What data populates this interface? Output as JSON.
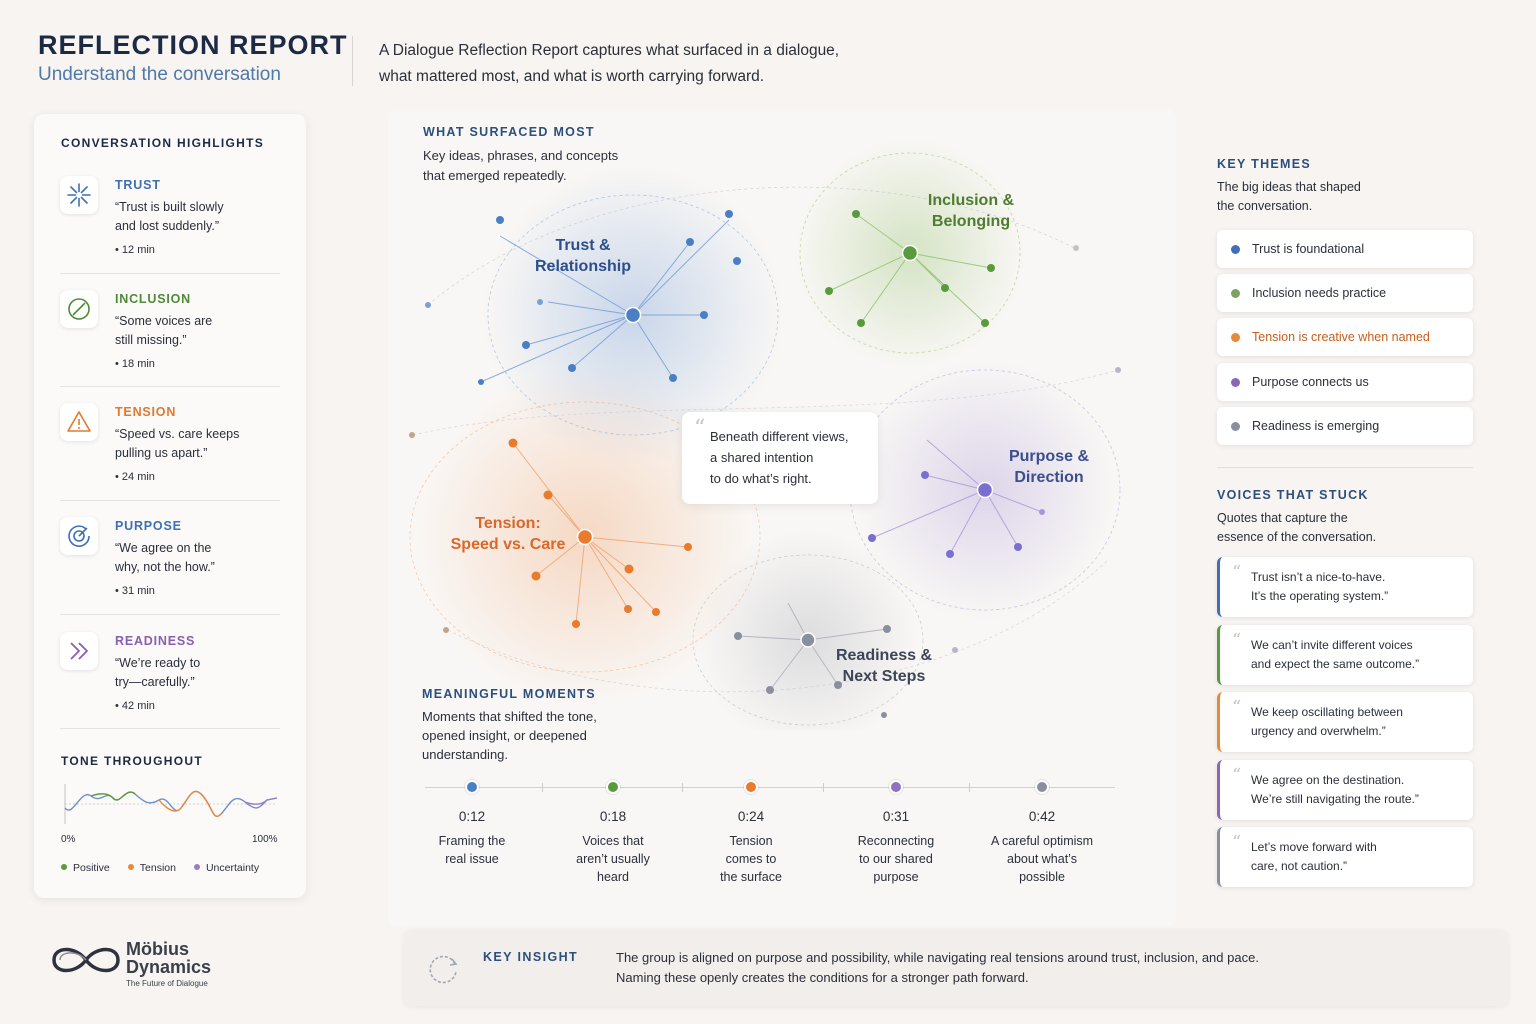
{
  "header": {
    "title": "REFLECTION REPORT",
    "subtitle": "Understand the conversation",
    "intro_line1": "A Dialogue Reflection Report captures what surfaced in a dialogue,",
    "intro_line2": "what mattered most, and what is worth carrying forward."
  },
  "highlights": {
    "title": "CONVERSATION HIGHLIGHTS",
    "items": [
      {
        "name": "TRUST",
        "quote_l1": "“Trust is built slowly",
        "quote_l2": "and lost suddenly.”",
        "time": "• 12 min",
        "color": "#3f6fb5",
        "icon": "sparkle-icon"
      },
      {
        "name": "INCLUSION",
        "quote_l1": "“Some voices are",
        "quote_l2": "still missing.”",
        "time": "• 18 min",
        "color": "#4f8a3a",
        "icon": "slash-circle-icon"
      },
      {
        "name": "TENSION",
        "quote_l1": "“Speed vs. care keeps",
        "quote_l2": "pulling us apart.”",
        "time": "• 24 min",
        "color": "#e07a2f",
        "icon": "warning-icon"
      },
      {
        "name": "PURPOSE",
        "quote_l1": "“We agree on the",
        "quote_l2": "why, not the how.”",
        "time": "• 31 min",
        "color": "#3f6fb5",
        "icon": "target-icon"
      },
      {
        "name": "READINESS",
        "quote_l1": "“We’re ready to",
        "quote_l2": "try—carefully.”",
        "time": "• 42 min",
        "color": "#8a5fb0",
        "icon": "double-chevron-icon"
      }
    ]
  },
  "tone": {
    "title": "TONE THROUGHOUT",
    "axis_start": "0%",
    "axis_end": "100%",
    "legend": [
      {
        "label": "Positive",
        "color": "#5a9a3e"
      },
      {
        "label": "Tension",
        "color": "#e88a3c"
      },
      {
        "label": "Uncertainty",
        "color": "#9a7cc4"
      }
    ]
  },
  "logo": {
    "name_l1": "Möbius",
    "name_l2": "Dynamics",
    "tagline": "The Future of Dialogue"
  },
  "surfaced": {
    "title": "WHAT SURFACED MOST",
    "desc_l1": "Key ideas, phrases, and concepts",
    "desc_l2": "that emerged repeatedly.",
    "clusters": [
      {
        "l1": "Trust &",
        "l2": "Relationship",
        "color": "#2c4f8c"
      },
      {
        "l1": "Inclusion &",
        "l2": "Belonging",
        "color": "#4e7d2f"
      },
      {
        "l1": "Tension:",
        "l2": "Speed vs. Care",
        "color": "#d9682a"
      },
      {
        "l1": "Purpose &",
        "l2": "Direction",
        "color": "#3a4f8c"
      },
      {
        "l1": "Readiness &",
        "l2": "Next Steps",
        "color": "#3e4556"
      }
    ],
    "center_quote_l1": "Beneath different views,",
    "center_quote_l2": "a shared intention",
    "center_quote_l3": "to do what’s right."
  },
  "moments": {
    "title": "MEANINGFUL MOMENTS",
    "desc_l1": "Moments that shifted the tone,",
    "desc_l2": "opened insight, or deepened",
    "desc_l3": "understanding.",
    "items": [
      {
        "time": "0:12",
        "l1": "Framing the",
        "l2": "real issue",
        "l3": "",
        "color": "#4a7fc4"
      },
      {
        "time": "0:18",
        "l1": "Voices that",
        "l2": "aren’t usually",
        "l3": "heard",
        "color": "#5a9a3e"
      },
      {
        "time": "0:24",
        "l1": "Tension",
        "l2": "comes to",
        "l3": "the surface",
        "color": "#ea7a2c"
      },
      {
        "time": "0:31",
        "l1": "Reconnecting",
        "l2": "to our shared",
        "l3": "purpose",
        "color": "#9070c0"
      },
      {
        "time": "0:42",
        "l1": "A careful optimism",
        "l2": "about what’s",
        "l3": "possible",
        "color": "#8a8fa0"
      }
    ]
  },
  "themes": {
    "title": "KEY THEMES",
    "desc_l1": "The big ideas that shaped",
    "desc_l2": "the conversation.",
    "items": [
      {
        "label": "Trust is foundational",
        "color": "#3f6fb5"
      },
      {
        "label": "Inclusion needs practice",
        "color": "#7ea35e"
      },
      {
        "label": "Tension is creative when named",
        "color": "#e8893a"
      },
      {
        "label": "Purpose connects us",
        "color": "#8a66b8"
      },
      {
        "label": "Readiness is emerging",
        "color": "#8a8fa0"
      }
    ]
  },
  "voices": {
    "title": "VOICES THAT STUCK",
    "desc_l1": "Quotes that capture the",
    "desc_l2": "essence of the conversation.",
    "items": [
      {
        "l1": "Trust isn’t a nice-to-have.",
        "l2": "It’s the operating system.”",
        "color": "#3f6fb5"
      },
      {
        "l1": "We can’t invite different voices",
        "l2": "and expect the same outcome.”",
        "color": "#5a9a3e"
      },
      {
        "l1": "We keep oscillating between",
        "l2": "urgency and overwhelm.”",
        "color": "#e8893a"
      },
      {
        "l1": "We agree on the destination.",
        "l2": "We’re still navigating the route.”",
        "color": "#8a66b8"
      },
      {
        "l1": "Let’s move forward with",
        "l2": "care, not caution.”",
        "color": "#8a8fa0"
      }
    ]
  },
  "insight": {
    "label": "KEY INSIGHT",
    "l1": "The group is aligned on purpose and possibility, while navigating real tensions around trust, inclusion, and pace.",
    "l2": "Naming these openly creates the conditions for a stronger path forward."
  }
}
